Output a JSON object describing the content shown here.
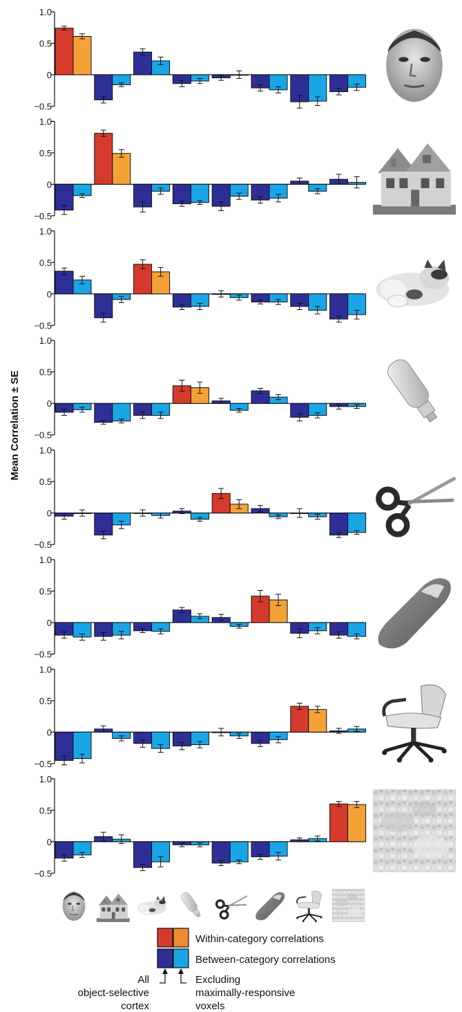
{
  "chart_data": {
    "type": "bar",
    "ylabel": "Mean Correlation ± SE",
    "ylim": [
      -0.5,
      1.0
    ],
    "yticks": [
      "1.0",
      "0.5",
      "0",
      "−0.5"
    ],
    "categories": [
      "face",
      "house",
      "cat",
      "bottle",
      "scissors",
      "shoe",
      "chair",
      "scrambled"
    ],
    "series_colors": {
      "within_all": "#d63a2c",
      "within_excl": "#f4a236",
      "between_all": "#2e2f96",
      "between_excl": "#1aa6e6"
    },
    "panels": [
      {
        "row_category": "face",
        "all": [
          0.74,
          -0.4,
          0.36,
          -0.14,
          -0.05,
          -0.21,
          -0.43,
          -0.27
        ],
        "excl": [
          0.61,
          -0.16,
          0.22,
          -0.1,
          0.0,
          -0.24,
          -0.42,
          -0.2
        ],
        "err_all": [
          0.03,
          0.05,
          0.05,
          0.05,
          0.04,
          0.05,
          0.1,
          0.05
        ],
        "err_excl": [
          0.04,
          0.03,
          0.06,
          0.04,
          0.06,
          0.05,
          0.07,
          0.05
        ]
      },
      {
        "row_category": "house",
        "all": [
          -0.41,
          0.81,
          -0.36,
          -0.31,
          -0.35,
          -0.25,
          0.05,
          0.08
        ],
        "excl": [
          -0.18,
          0.49,
          -0.11,
          -0.29,
          -0.19,
          -0.22,
          -0.11,
          0.03
        ],
        "err_all": [
          0.07,
          0.05,
          0.08,
          0.04,
          0.07,
          0.05,
          0.05,
          0.08
        ],
        "err_excl": [
          0.03,
          0.06,
          0.05,
          0.03,
          0.05,
          0.06,
          0.04,
          0.09
        ]
      },
      {
        "row_category": "cat",
        "all": [
          0.36,
          -0.38,
          0.47,
          -0.21,
          0.0,
          -0.13,
          -0.2,
          -0.4
        ],
        "excl": [
          0.22,
          -0.09,
          0.35,
          -0.2,
          -0.06,
          -0.13,
          -0.26,
          -0.33
        ],
        "err_all": [
          0.05,
          0.07,
          0.07,
          0.04,
          0.05,
          0.03,
          0.05,
          0.05
        ],
        "err_excl": [
          0.06,
          0.05,
          0.07,
          0.05,
          0.04,
          0.04,
          0.06,
          0.07
        ]
      },
      {
        "row_category": "bottle",
        "all": [
          -0.14,
          -0.3,
          -0.19,
          0.28,
          0.04,
          0.2,
          -0.22,
          -0.05
        ],
        "excl": [
          -0.1,
          -0.28,
          -0.19,
          0.25,
          -0.11,
          0.1,
          -0.19,
          -0.05
        ],
        "err_all": [
          0.05,
          0.03,
          0.05,
          0.09,
          0.04,
          0.04,
          0.06,
          0.04
        ],
        "err_excl": [
          0.04,
          0.03,
          0.05,
          0.09,
          0.03,
          0.04,
          0.04,
          0.03
        ]
      },
      {
        "row_category": "scissors",
        "all": [
          -0.05,
          -0.35,
          0.0,
          0.03,
          0.31,
          0.07,
          0.0,
          -0.35
        ],
        "excl": [
          0.0,
          -0.19,
          -0.04,
          -0.1,
          0.14,
          -0.06,
          -0.06,
          -0.31
        ],
        "err_all": [
          0.05,
          0.06,
          0.05,
          0.04,
          0.08,
          0.05,
          0.07,
          0.04
        ],
        "err_excl": [
          0.05,
          0.06,
          0.04,
          0.03,
          0.07,
          0.03,
          0.04,
          0.03
        ]
      },
      {
        "row_category": "shoe",
        "all": [
          -0.2,
          -0.22,
          -0.13,
          0.2,
          0.08,
          0.42,
          -0.17,
          -0.2
        ],
        "excl": [
          -0.23,
          -0.2,
          -0.14,
          0.1,
          -0.06,
          0.36,
          -0.13,
          -0.22
        ],
        "err_all": [
          0.05,
          0.06,
          0.03,
          0.04,
          0.05,
          0.09,
          0.07,
          0.05
        ],
        "err_excl": [
          0.05,
          0.06,
          0.04,
          0.04,
          0.03,
          0.09,
          0.05,
          0.04
        ]
      },
      {
        "row_category": "chair",
        "all": [
          -0.45,
          0.05,
          -0.18,
          -0.22,
          0.0,
          -0.18,
          0.41,
          0.02
        ],
        "excl": [
          -0.42,
          -0.1,
          -0.26,
          -0.2,
          -0.06,
          -0.12,
          0.36,
          0.05
        ],
        "err_all": [
          0.07,
          0.05,
          0.06,
          0.06,
          0.06,
          0.05,
          0.05,
          0.04
        ],
        "err_excl": [
          0.07,
          0.04,
          0.06,
          0.05,
          0.04,
          0.05,
          0.05,
          0.04
        ]
      },
      {
        "row_category": "scrambled",
        "all": [
          -0.26,
          0.08,
          -0.41,
          -0.05,
          -0.34,
          -0.24,
          0.03,
          0.6
        ],
        "excl": [
          -0.21,
          0.04,
          -0.32,
          -0.05,
          -0.32,
          -0.23,
          0.05,
          0.59
        ],
        "err_all": [
          0.05,
          0.07,
          0.05,
          0.03,
          0.04,
          0.04,
          0.03,
          0.04
        ],
        "err_excl": [
          0.04,
          0.07,
          0.08,
          0.03,
          0.03,
          0.06,
          0.04,
          0.05
        ]
      }
    ]
  },
  "legend": {
    "within_label": "Within-category correlations",
    "between_label": "Between-category correlations"
  },
  "notes": {
    "left_line1": "All",
    "left_line2": "object-selective",
    "left_line3": "cortex",
    "right_line1": "Excluding",
    "right_line2": "maximally-responsive",
    "right_line3": "voxels"
  },
  "images": {
    "row_icons": [
      "face-photo",
      "house-photo",
      "cat-photo",
      "bottle-photo",
      "scissors-photo",
      "shoe-photo",
      "chair-photo",
      "scrambled-texture"
    ]
  }
}
